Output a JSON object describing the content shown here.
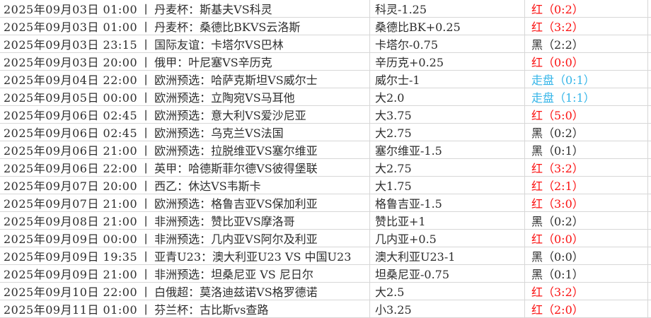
{
  "table": {
    "separator": "丨",
    "colors": {
      "red": "#fb1111",
      "black": "#2d2d2d",
      "push": "#35b5e8",
      "text": "#2d2d2d",
      "grid": "#d7d7d7"
    },
    "rows": [
      {
        "datetime": "2025年09月03日 01:00",
        "match": "丹麦杯：斯基夫VS科灵",
        "handicap": "科灵-1.25",
        "result": "红（0:2）",
        "result_type": "red"
      },
      {
        "datetime": "2025年09月03日 01:00",
        "match": "丹麦杯：桑德比BKVS云洛斯",
        "handicap": "桑德比BK+0.25",
        "result": "红（3:2）",
        "result_type": "red"
      },
      {
        "datetime": "2025年09月03日 23:15",
        "match": "国际友谊：卡塔尔VS巴林",
        "handicap": "卡塔尔-0.75",
        "result": "黑（2:2）",
        "result_type": "black"
      },
      {
        "datetime": "2025年09月03日 20:00",
        "match": "俄甲：叶尼塞VS辛历克",
        "handicap": "辛历克+0.25",
        "result": "红（0:0）",
        "result_type": "red"
      },
      {
        "datetime": "2025年09月04日 22:00",
        "match": "欧洲预选：哈萨克斯坦VS威尔士",
        "handicap": "威尔士-1",
        "result": "走盘（0:1）",
        "result_type": "push"
      },
      {
        "datetime": "2025年09月05日 00:00",
        "match": "欧洲预选：立陶宛VS马耳他",
        "handicap": "大2.0",
        "result": "走盘（1:1）",
        "result_type": "push"
      },
      {
        "datetime": "2025年09月06日 02:45",
        "match": "欧洲预选：意大利VS爱沙尼亚",
        "handicap": "大3.75",
        "result": "红（5:0）",
        "result_type": "red"
      },
      {
        "datetime": "2025年09月06日 02:45",
        "match": "欧洲预选：乌克兰VS法国",
        "handicap": "大2.75",
        "result": "黑（0:2）",
        "result_type": "black"
      },
      {
        "datetime": "2025年09月06日 21:00",
        "match": "欧洲预选：拉脱维亚VS塞尔维亚",
        "handicap": "塞尔维亚-1.5",
        "result": "黑（0:1）",
        "result_type": "black"
      },
      {
        "datetime": "2025年09月06日 22:00",
        "match": "英甲：哈德斯菲尔德VS彼得堡联",
        "handicap": "大2.75",
        "result": "红（3:2）",
        "result_type": "red"
      },
      {
        "datetime": "2025年09月07日 20:00",
        "match": "西乙：休达VS韦斯卡",
        "handicap": "大1.75",
        "result": "红（2:1）",
        "result_type": "red"
      },
      {
        "datetime": "2025年09月07日 21:00",
        "match": "欧洲预选：格鲁吉亚VS保加利亚",
        "handicap": "格鲁吉亚-1.5",
        "result": "红（3:0）",
        "result_type": "red"
      },
      {
        "datetime": "2025年09月08日 21:00",
        "match": "非洲预选：赞比亚VS摩洛哥",
        "handicap": "赞比亚+1",
        "result": "黑（0:2）",
        "result_type": "black"
      },
      {
        "datetime": "2025年09月09日 00:00",
        "match": "非洲预选：几内亚VS阿尔及利亚",
        "handicap": "几内亚+0.5",
        "result": "红（0:0）",
        "result_type": "red"
      },
      {
        "datetime": "2025年09月09日 19:35",
        "match": "亚青U23：澳大利亚U23 VS 中国U23",
        "handicap": "澳大利亚U23-1",
        "result": "黑（0:0）",
        "result_type": "black"
      },
      {
        "datetime": "2025年09月09日 21:00",
        "match": "非洲预选：坦桑尼亚 VS 尼日尔",
        "handicap": "坦桑尼亚-0.75",
        "result": "黑（0:1）",
        "result_type": "black"
      },
      {
        "datetime": "2025年09月10日 22:00",
        "match": "白俄超：莫洛迪兹诺VS格罗德诺",
        "handicap": "大2.5",
        "result": "红（3:2）",
        "result_type": "red"
      },
      {
        "datetime": "2025年09月11日 01:00",
        "match": "芬兰杯：古比斯vs查路",
        "handicap": "小3.25",
        "result": "红（2:0）",
        "result_type": "red"
      }
    ]
  }
}
